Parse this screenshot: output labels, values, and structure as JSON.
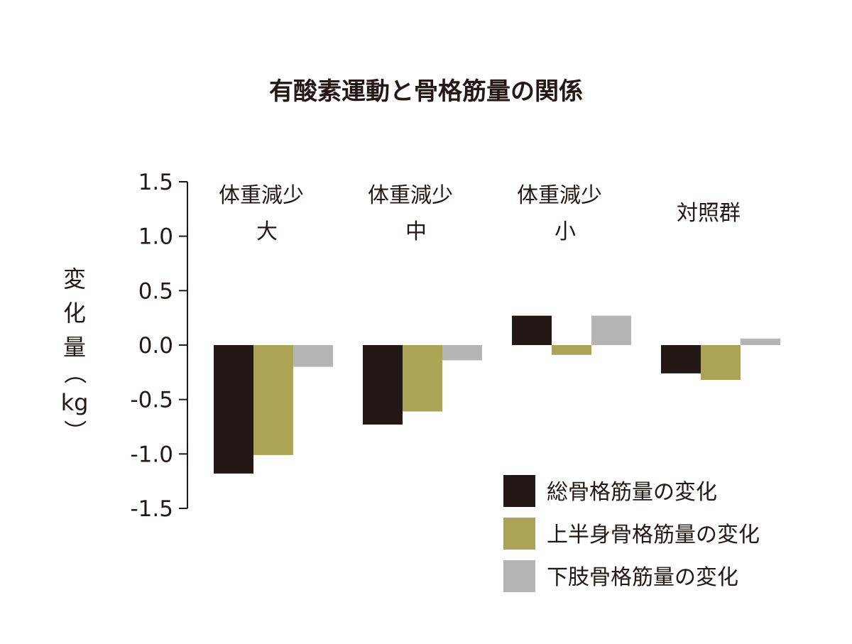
{
  "chart_data": {
    "type": "bar",
    "title": "有酸素運動と骨格筋量の関係",
    "ylabel": [
      "変",
      "化",
      "量",
      "（",
      "kg",
      "）"
    ],
    "ylim": [
      -1.5,
      1.5
    ],
    "yticks": [
      "1.5",
      "1.0",
      "0.5",
      "0.0",
      "-0.5",
      "-1.0",
      "-1.5"
    ],
    "categories": [
      {
        "line1": "体重減少",
        "line2": "大"
      },
      {
        "line1": "体重減少",
        "line2": "中"
      },
      {
        "line1": "体重減少",
        "line2": "小"
      },
      {
        "line1": "対照群",
        "line2": ""
      }
    ],
    "series": [
      {
        "name": "総骨格筋量の変化",
        "color": "#231815",
        "values": [
          -1.18,
          -0.73,
          0.27,
          -0.26
        ]
      },
      {
        "name": "上半身骨格筋量の変化",
        "color": "#aba456",
        "values": [
          -1.01,
          -0.61,
          -0.09,
          -0.32
        ]
      },
      {
        "name": "下肢骨格筋量の変化",
        "color": "#b5b5b6",
        "values": [
          -0.2,
          -0.14,
          0.27,
          0.06
        ]
      }
    ],
    "grid": false,
    "legend_position": "bottom-right"
  }
}
